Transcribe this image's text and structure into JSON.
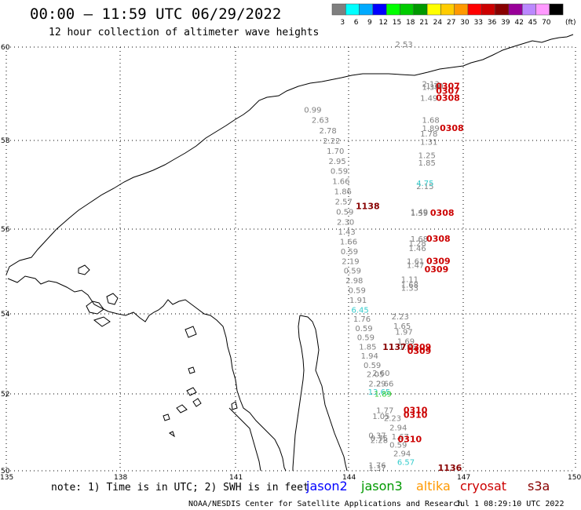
{
  "title": "00:00 – 11:59 UTC 06/29/2022",
  "subtitle": "12 hour collection of altimeter wave heights",
  "colorbar": {
    "labels": [
      "3",
      "6",
      "9",
      "12",
      "15",
      "18",
      "21",
      "24",
      "27",
      "30",
      "33",
      "36",
      "39",
      "42",
      "45",
      "70"
    ],
    "unit": "(ft)",
    "colors": [
      "#7f7f7f",
      "#00ffff",
      "#00aaff",
      "#0000ff",
      "#00ff00",
      "#00cc00",
      "#009900",
      "#ffff00",
      "#ffcc00",
      "#ff9900",
      "#ff0000",
      "#cc0000",
      "#880000",
      "#990099",
      "#bb88ff",
      "#ff99ff",
      "#000000"
    ]
  },
  "map": {
    "lon_ticks": [
      "135",
      "138",
      "141",
      "144",
      "147",
      "150"
    ],
    "lat_ticks": [
      "60",
      "58",
      "56",
      "54",
      "52",
      "50"
    ],
    "lon_range": [
      135,
      150
    ],
    "lat_range": [
      50,
      60
    ],
    "grid": "dotted"
  },
  "chart_data": {
    "type": "scatter",
    "observations": [
      {
        "lon": 143.05,
        "lat": 58.6,
        "label": "0.99",
        "color": "#808080"
      },
      {
        "lon": 143.25,
        "lat": 58.38,
        "label": "2.63",
        "color": "#808080"
      },
      {
        "lon": 143.45,
        "lat": 58.15,
        "label": "2.78",
        "color": "#808080"
      },
      {
        "lon": 143.55,
        "lat": 57.93,
        "label": "2.22",
        "color": "#808080"
      },
      {
        "lon": 143.65,
        "lat": 57.7,
        "label": "1.70",
        "color": "#808080"
      },
      {
        "lon": 143.7,
        "lat": 57.47,
        "label": "2.95",
        "color": "#808080"
      },
      {
        "lon": 143.75,
        "lat": 57.25,
        "label": "0.59",
        "color": "#808080"
      },
      {
        "lon": 143.8,
        "lat": 57.02,
        "label": "1.66",
        "color": "#808080"
      },
      {
        "lon": 143.85,
        "lat": 56.79,
        "label": "1.86",
        "color": "#808080"
      },
      {
        "lon": 143.87,
        "lat": 56.56,
        "label": "2.57",
        "color": "#808080"
      },
      {
        "lon": 143.9,
        "lat": 56.33,
        "label": "0.59",
        "color": "#808080"
      },
      {
        "lon": 143.92,
        "lat": 56.1,
        "label": "2.30",
        "color": "#808080"
      },
      {
        "lon": 143.95,
        "lat": 55.87,
        "label": "1.43",
        "color": "#808080"
      },
      {
        "lon": 144.0,
        "lat": 55.64,
        "label": "1.66",
        "color": "#808080"
      },
      {
        "lon": 144.02,
        "lat": 55.41,
        "label": "0.59",
        "color": "#808080"
      },
      {
        "lon": 144.05,
        "lat": 55.18,
        "label": "2.19",
        "color": "#808080"
      },
      {
        "lon": 144.1,
        "lat": 54.95,
        "label": "0.59",
        "color": "#808080"
      },
      {
        "lon": 144.15,
        "lat": 54.72,
        "label": "2.98",
        "color": "#808080"
      },
      {
        "lon": 144.22,
        "lat": 54.49,
        "label": "0.59",
        "color": "#808080"
      },
      {
        "lon": 144.25,
        "lat": 54.26,
        "label": "1.91",
        "color": "#808080"
      },
      {
        "lon": 144.3,
        "lat": 54.03,
        "label": "6.45",
        "color": "#33cccc"
      },
      {
        "lon": 144.35,
        "lat": 53.8,
        "label": "1.76",
        "color": "#808080"
      },
      {
        "lon": 144.4,
        "lat": 53.57,
        "label": "0.59",
        "color": "#808080"
      },
      {
        "lon": 144.45,
        "lat": 53.34,
        "label": "0.59",
        "color": "#808080"
      },
      {
        "lon": 144.5,
        "lat": 53.11,
        "label": "1.85",
        "color": "#808080"
      },
      {
        "lon": 144.55,
        "lat": 52.88,
        "label": "1.94",
        "color": "#808080"
      },
      {
        "lon": 144.62,
        "lat": 52.65,
        "label": "0.59",
        "color": "#808080"
      },
      {
        "lon": 144.7,
        "lat": 52.42,
        "label": "2.05",
        "color": "#808080"
      },
      {
        "lon": 144.85,
        "lat": 52.45,
        "label": "2.60",
        "color": "#808080"
      },
      {
        "lon": 144.75,
        "lat": 52.19,
        "label": "2.29",
        "color": "#808080"
      },
      {
        "lon": 144.95,
        "lat": 52.19,
        "label": "2.66",
        "color": "#808080"
      },
      {
        "lon": 144.8,
        "lat": 51.98,
        "label": "13.65",
        "color": "#33cccc"
      },
      {
        "lon": 144.9,
        "lat": 51.93,
        "label": "1.89",
        "color": "#33cc33"
      },
      {
        "lon": 144.95,
        "lat": 51.5,
        "label": "1.77",
        "color": "#808080"
      },
      {
        "lon": 144.85,
        "lat": 51.35,
        "label": "1.05",
        "color": "#808080"
      },
      {
        "lon": 145.15,
        "lat": 51.3,
        "label": "2.23",
        "color": "#808080"
      },
      {
        "lon": 145.3,
        "lat": 51.05,
        "label": "2.94",
        "color": "#808080"
      },
      {
        "lon": 144.75,
        "lat": 50.85,
        "label": "0.37",
        "color": "#808080"
      },
      {
        "lon": 144.8,
        "lat": 50.78,
        "label": "0.75",
        "color": "#808080"
      },
      {
        "lon": 144.8,
        "lat": 50.72,
        "label": "2.28",
        "color": "#808080"
      },
      {
        "lon": 145.35,
        "lat": 50.82,
        "label": "1.67",
        "color": "#808080"
      },
      {
        "lon": 145.3,
        "lat": 50.6,
        "label": "0.59",
        "color": "#808080"
      },
      {
        "lon": 145.4,
        "lat": 50.38,
        "label": "2.94",
        "color": "#808080"
      },
      {
        "lon": 145.5,
        "lat": 50.15,
        "label": "6.57",
        "color": "#33cccc"
      },
      {
        "lon": 144.75,
        "lat": 50.07,
        "label": "1.76",
        "color": "#808080"
      },
      {
        "lon": 144.75,
        "lat": 50.0,
        "label": "1.37",
        "color": "#808080"
      },
      {
        "lon": 145.45,
        "lat": 49.95,
        "label": "2.53",
        "color": "#808080"
      },
      {
        "lon": 145.35,
        "lat": 53.86,
        "label": "2.23",
        "color": "#808080"
      },
      {
        "lon": 145.4,
        "lat": 53.63,
        "label": "1.65",
        "color": "#808080"
      },
      {
        "lon": 145.45,
        "lat": 53.48,
        "label": "1.97",
        "color": "#808080"
      },
      {
        "lon": 145.5,
        "lat": 53.25,
        "label": "1.69",
        "color": "#808080"
      },
      {
        "lon": 145.55,
        "lat": 53.1,
        "label": "1.86",
        "color": "#808080"
      },
      {
        "lon": 145.6,
        "lat": 54.55,
        "label": "1.33",
        "color": "#808080"
      },
      {
        "lon": 145.6,
        "lat": 54.62,
        "label": "1.68",
        "color": "#808080"
      },
      {
        "lon": 145.6,
        "lat": 54.75,
        "label": "1.11",
        "color": "#808080"
      },
      {
        "lon": 145.75,
        "lat": 55.08,
        "label": "1.47",
        "color": "#808080"
      },
      {
        "lon": 145.75,
        "lat": 55.18,
        "label": "1.61",
        "color": "#808080"
      },
      {
        "lon": 145.8,
        "lat": 55.48,
        "label": "1.46",
        "color": "#808080"
      },
      {
        "lon": 145.8,
        "lat": 55.6,
        "label": "1.28",
        "color": "#808080"
      },
      {
        "lon": 145.85,
        "lat": 55.7,
        "label": "1.68",
        "color": "#808080"
      },
      {
        "lon": 145.85,
        "lat": 56.3,
        "label": "1.59",
        "color": "#808080"
      },
      {
        "lon": 145.85,
        "lat": 56.33,
        "label": "1.49",
        "color": "#808080"
      },
      {
        "lon": 146.0,
        "lat": 56.9,
        "label": "2.15",
        "color": "#808080"
      },
      {
        "lon": 146.0,
        "lat": 56.97,
        "label": "4.75",
        "color": "#33cccc"
      },
      {
        "lon": 146.05,
        "lat": 57.43,
        "label": "1.85",
        "color": "#808080"
      },
      {
        "lon": 146.05,
        "lat": 57.6,
        "label": "1.25",
        "color": "#808080"
      },
      {
        "lon": 146.1,
        "lat": 57.9,
        "label": "1.31",
        "color": "#808080"
      },
      {
        "lon": 146.1,
        "lat": 58.08,
        "label": "1.78",
        "color": "#808080"
      },
      {
        "lon": 146.15,
        "lat": 58.2,
        "label": "1.89",
        "color": "#808080"
      },
      {
        "lon": 146.15,
        "lat": 58.38,
        "label": "1.68",
        "color": "#808080"
      },
      {
        "lon": 146.1,
        "lat": 58.85,
        "label": "1.49",
        "color": "#808080"
      },
      {
        "lon": 146.15,
        "lat": 59.08,
        "label": "1.39",
        "color": "#808080"
      },
      {
        "lon": 146.15,
        "lat": 59.15,
        "label": "2.13",
        "color": "#808080"
      },
      {
        "lon": 146.25,
        "lat": 59.11,
        "label": "1.10",
        "color": "#808080"
      }
    ],
    "pass_ids": [
      {
        "lon": 144.5,
        "lat": 56.45,
        "label": "1138",
        "color": "#880000"
      },
      {
        "lon": 146.6,
        "lat": 59.1,
        "label": "0307",
        "color": "#cc0000"
      },
      {
        "lon": 146.6,
        "lat": 59.0,
        "label": "0307",
        "color": "#cc0000"
      },
      {
        "lon": 146.6,
        "lat": 58.85,
        "label": "0308",
        "color": "#cc0000"
      },
      {
        "lon": 146.7,
        "lat": 58.2,
        "label": "0308",
        "color": "#cc0000"
      },
      {
        "lon": 146.45,
        "lat": 56.3,
        "label": "0308",
        "color": "#cc0000"
      },
      {
        "lon": 146.35,
        "lat": 55.7,
        "label": "0308",
        "color": "#cc0000"
      },
      {
        "lon": 146.35,
        "lat": 55.18,
        "label": "0309",
        "color": "#cc0000"
      },
      {
        "lon": 146.3,
        "lat": 54.98,
        "label": "0309",
        "color": "#cc0000"
      },
      {
        "lon": 145.2,
        "lat": 53.1,
        "label": "1137",
        "color": "#880000"
      },
      {
        "lon": 145.85,
        "lat": 53.1,
        "label": "0309",
        "color": "#cc0000"
      },
      {
        "lon": 145.85,
        "lat": 53.0,
        "label": "0309",
        "color": "#cc0000"
      },
      {
        "lon": 145.75,
        "lat": 51.5,
        "label": "0310",
        "color": "#cc0000"
      },
      {
        "lon": 145.75,
        "lat": 51.38,
        "label": "0310",
        "color": "#cc0000"
      },
      {
        "lon": 145.6,
        "lat": 50.75,
        "label": "0310",
        "color": "#cc0000"
      },
      {
        "lon": 146.65,
        "lat": 50.0,
        "label": "1136",
        "color": "#880000"
      }
    ]
  },
  "footer": {
    "note": "note: 1) Time is in UTC; 2) SWH is in feet",
    "legend": [
      {
        "label": "jason2",
        "color": "#0000ff"
      },
      {
        "label": "jason3",
        "color": "#009900"
      },
      {
        "label": "altika",
        "color": "#ff9900"
      },
      {
        "label": "cryosat",
        "color": "#cc0000"
      },
      {
        "label": "s3a",
        "color": "#880000"
      }
    ],
    "credit": "NOAA/NESDIS Center for Satellite Applications and Research",
    "date": "Jul  1 08:29:10 UTC 2022"
  }
}
